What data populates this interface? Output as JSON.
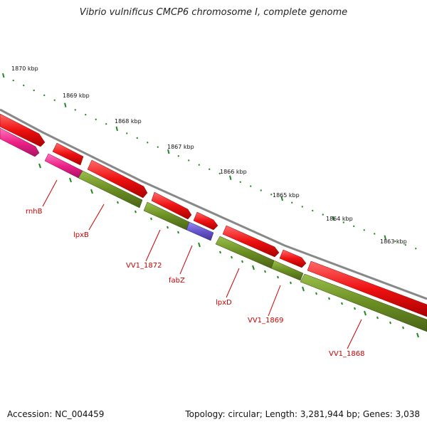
{
  "title": "Vibrio vulnificus CMCP6 chromosome I, complete genome",
  "accession": "Accession: NC_004459",
  "summary": "Topology: circular; Length: 3,281,944 bp; Genes: 3,038",
  "scale_labels": [
    "1870 kbp",
    "1869 kbp",
    "1868 kbp",
    "1867 kbp",
    "1866 kbp",
    "1865 kbp",
    "1864 kbp",
    "1863 kbp"
  ],
  "gene_labels": [
    "rnhB",
    "lpxB",
    "VV1_1872",
    "fabZ",
    "lpxD",
    "VV1_1869",
    "VV1_1868"
  ],
  "colors": {
    "forward": "#ee1111",
    "reverse": "#6b8e23",
    "pink": "#ee2288",
    "purple": "#6655cc",
    "backbone": "#888888",
    "ticks": "#228822",
    "labels": "#cc0000"
  }
}
